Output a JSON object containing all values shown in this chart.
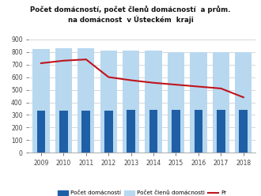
{
  "years": [
    2009,
    2010,
    2011,
    2012,
    2013,
    2014,
    2015,
    2016,
    2017,
    2018
  ],
  "pocet_domacnosti": [
    335,
    335,
    335,
    335,
    340,
    342,
    342,
    342,
    342,
    342
  ],
  "pocet_clenu": [
    825,
    828,
    830,
    808,
    808,
    807,
    800,
    800,
    800,
    795
  ],
  "prumer": [
    710,
    730,
    740,
    600,
    575,
    555,
    540,
    525,
    510,
    440
  ],
  "title_line1": "Počet domácností, počet členů domácností  a prům.",
  "title_line2": "na domácnost  v Ústeckém  kraji",
  "legend_dark_blue": "Počet domácností",
  "legend_light_blue": "Počet členů domácnosti",
  "legend_red": "Pr",
  "color_dark_blue": "#1f5fa6",
  "color_light_blue": "#b8d8f0",
  "color_red": "#c0141c",
  "color_bg": "#ffffff",
  "color_grid": "#c8c8c8",
  "ylim": [
    0,
    900
  ],
  "yticks": [
    0,
    100,
    200,
    300,
    400,
    500,
    600,
    700,
    800,
    900
  ]
}
